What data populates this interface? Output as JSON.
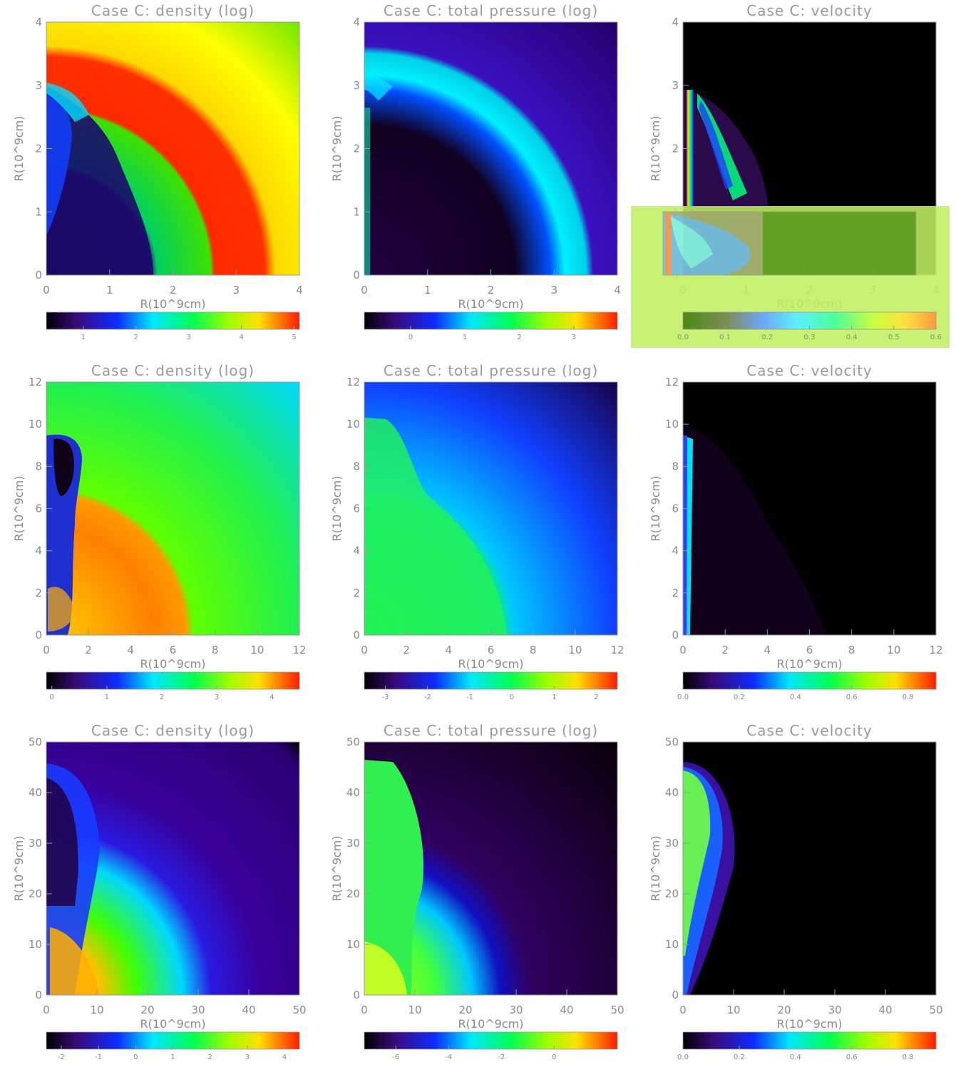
{
  "chart_data": [
    {
      "type": "heatmap",
      "title": "Case C: density (log)",
      "xlabel": "R(10^9cm)",
      "ylabel": "R(10^9cm)",
      "x_ticks": [
        "0",
        "1",
        "2",
        "3",
        "4"
      ],
      "y_ticks": [
        "0",
        "1",
        "2",
        "3",
        "4"
      ],
      "xlim": [
        0,
        4
      ],
      "ylim": [
        0,
        4
      ],
      "colorbar": {
        "min": 0.3,
        "max": 5.1,
        "ticks": [
          "1",
          "2",
          "3",
          "4",
          "5"
        ]
      },
      "pattern": "density-1"
    },
    {
      "type": "heatmap",
      "title": "Case C: total pressure (log)",
      "xlabel": "R(10^9cm)",
      "ylabel": "R(10^9cm)",
      "x_ticks": [
        "0",
        "1",
        "2",
        "3",
        "4"
      ],
      "y_ticks": [
        "0",
        "1",
        "2",
        "3",
        "4"
      ],
      "xlim": [
        0,
        4
      ],
      "ylim": [
        0,
        4
      ],
      "colorbar": {
        "min": -0.85,
        "max": 3.8,
        "ticks": [
          "0",
          "1",
          "2",
          "3"
        ]
      },
      "pattern": "pressure-1"
    },
    {
      "type": "heatmap",
      "title": "Case C: velocity",
      "xlabel": "R(10^9cm)",
      "ylabel": "R(10^9cm)",
      "x_ticks": [
        "0",
        "1",
        "2",
        "3",
        "4"
      ],
      "y_ticks": [
        "0",
        "1",
        "2",
        "3",
        "4"
      ],
      "xlim": [
        0,
        4
      ],
      "ylim": [
        0,
        4
      ],
      "colorbar": {
        "min": 0.0,
        "max": 0.6,
        "ticks": [
          "0.0",
          "0.1",
          "0.2",
          "0.3",
          "0.4",
          "0.5",
          "0.6"
        ]
      },
      "pattern": "velocity-1"
    },
    {
      "type": "heatmap",
      "title": "Case C: density (log)",
      "xlabel": "R(10^9cm)",
      "ylabel": "R(10^9cm)",
      "x_ticks": [
        "0",
        "2",
        "4",
        "6",
        "8",
        "10",
        "12"
      ],
      "y_ticks": [
        "0",
        "2",
        "4",
        "6",
        "8",
        "10",
        "12"
      ],
      "xlim": [
        0,
        12
      ],
      "ylim": [
        0,
        12
      ],
      "colorbar": {
        "min": -0.1,
        "max": 4.5,
        "ticks": [
          "0",
          "1",
          "2",
          "3",
          "4"
        ]
      },
      "pattern": "density-2"
    },
    {
      "type": "heatmap",
      "title": "Case C: total pressure (log)",
      "xlabel": "R(10^9cm)",
      "ylabel": "R(10^9cm)",
      "x_ticks": [
        "0",
        "2",
        "4",
        "6",
        "8",
        "10",
        "12"
      ],
      "y_ticks": [
        "0",
        "2",
        "4",
        "6",
        "8",
        "10",
        "12"
      ],
      "xlim": [
        0,
        12
      ],
      "ylim": [
        0,
        12
      ],
      "colorbar": {
        "min": -3.5,
        "max": 2.5,
        "ticks": [
          "-3",
          "-2",
          "-1",
          "0",
          "1",
          "2"
        ]
      },
      "pattern": "pressure-2"
    },
    {
      "type": "heatmap",
      "title": "Case C: velocity",
      "xlabel": "R(10^9cm)",
      "ylabel": "R(10^9cm)",
      "x_ticks": [
        "0",
        "2",
        "4",
        "6",
        "8",
        "10",
        "12"
      ],
      "y_ticks": [
        "0",
        "2",
        "4",
        "6",
        "8",
        "10",
        "12"
      ],
      "xlim": [
        0,
        12
      ],
      "ylim": [
        0,
        12
      ],
      "colorbar": {
        "min": 0.0,
        "max": 0.9,
        "ticks": [
          "0.0",
          "0.2",
          "0.4",
          "0.6",
          "0.8"
        ]
      },
      "pattern": "velocity-2"
    },
    {
      "type": "heatmap",
      "title": "Case C: density (log)",
      "xlabel": "R(10^9cm)",
      "ylabel": "R(10^9cm)",
      "x_ticks": [
        "0",
        "10",
        "20",
        "30",
        "40",
        "50"
      ],
      "y_ticks": [
        "0",
        "10",
        "20",
        "30",
        "40",
        "50"
      ],
      "xlim": [
        0,
        50
      ],
      "ylim": [
        0,
        50
      ],
      "colorbar": {
        "min": -2.4,
        "max": 4.4,
        "ticks": [
          "-2",
          "-1",
          "0",
          "1",
          "2",
          "3",
          "4"
        ]
      },
      "pattern": "density-3"
    },
    {
      "type": "heatmap",
      "title": "Case C: total pressure (log)",
      "xlabel": "R(10^9cm)",
      "ylabel": "R(10^9cm)",
      "x_ticks": [
        "0",
        "10",
        "20",
        "30",
        "40",
        "50"
      ],
      "y_ticks": [
        "0",
        "10",
        "20",
        "30",
        "40",
        "50"
      ],
      "xlim": [
        0,
        50
      ],
      "ylim": [
        0,
        50
      ],
      "colorbar": {
        "min": -7.2,
        "max": 2.4,
        "ticks": [
          "-6",
          "-4",
          "-2",
          "0"
        ]
      },
      "pattern": "pressure-3"
    },
    {
      "type": "heatmap",
      "title": "Case C: velocity",
      "xlabel": "R(10^9cm)",
      "ylabel": "R(10^9cm)",
      "x_ticks": [
        "0",
        "10",
        "20",
        "30",
        "40",
        "50"
      ],
      "y_ticks": [
        "0",
        "10",
        "20",
        "30",
        "40",
        "50"
      ],
      "xlim": [
        0,
        50
      ],
      "ylim": [
        0,
        50
      ],
      "colorbar": {
        "min": 0.0,
        "max": 0.9,
        "ticks": [
          "0.0",
          "0.2",
          "0.4",
          "0.6",
          "0.8"
        ]
      },
      "pattern": "velocity-3"
    }
  ]
}
